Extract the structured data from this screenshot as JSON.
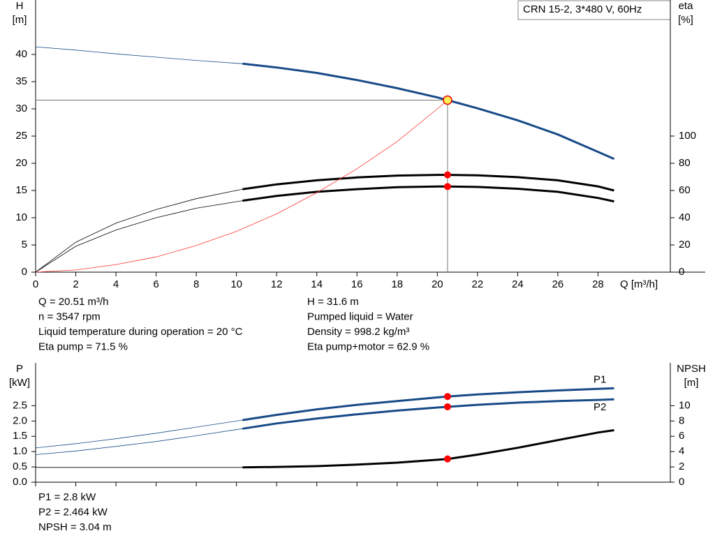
{
  "chart_data": [
    {
      "type": "line",
      "title": "CRN 15-2, 3*480 V, 60Hz",
      "ylabel": "H",
      "yunit": "[m]",
      "y2label": "eta",
      "y2unit": "[%]",
      "xlabel": "Q [m³/h]",
      "xlim": [
        0,
        31.6
      ],
      "xticks": [
        0,
        2,
        4,
        6,
        8,
        10,
        12,
        14,
        16,
        18,
        20,
        22,
        24,
        26,
        28
      ],
      "ylim": [
        0,
        50
      ],
      "yticks": [
        0,
        5,
        10,
        15,
        20,
        25,
        30,
        35,
        40
      ],
      "y2lim": [
        0,
        200
      ],
      "y2ticks": [
        0,
        20,
        40,
        60,
        80,
        100
      ],
      "show_xtick_labels": true,
      "operating_point_x": 20.51,
      "series": [
        {
          "color": "#174a87",
          "thick_from": 10.3,
          "marker": true,
          "marker_color": "#ffee55",
          "guides": true,
          "x": [
            0,
            2,
            4,
            6,
            8,
            10.3,
            12,
            14,
            16,
            18,
            20,
            20.51,
            22,
            24,
            26,
            28,
            28.8
          ],
          "values": [
            41.4,
            40.8,
            40.1,
            39.5,
            38.9,
            38.3,
            37.6,
            36.6,
            35.3,
            33.8,
            32.1,
            31.6,
            30.1,
            27.9,
            25.3,
            22.1,
            20.8
          ]
        },
        {
          "color": "#000000",
          "axis": "y2",
          "thick_from": 10.3,
          "marker": true,
          "marker_color": "#ff0000",
          "x": [
            0,
            2,
            4,
            6,
            8,
            10.3,
            12,
            14,
            16,
            18,
            20,
            20.51,
            22,
            24,
            26,
            28,
            28.8
          ],
          "values": [
            0,
            22,
            36,
            46,
            54,
            61,
            64.5,
            67.5,
            69.6,
            71,
            71.5,
            71.5,
            71.2,
            69.8,
            67.5,
            63,
            60
          ]
        },
        {
          "color": "#000000",
          "axis": "y2",
          "thick_from": 10.3,
          "marker": true,
          "marker_color": "#ff0000",
          "x": [
            0,
            2,
            4,
            6,
            8,
            10.3,
            12,
            14,
            16,
            18,
            20,
            20.51,
            22,
            24,
            26,
            28,
            28.8
          ],
          "values": [
            0,
            19,
            31,
            40,
            47,
            52.5,
            56,
            59,
            61,
            62.4,
            62.9,
            62.9,
            62.6,
            61.3,
            59,
            54.5,
            52
          ]
        },
        {
          "color": "#ff3333",
          "x": [
            0,
            2,
            4,
            6,
            8,
            10,
            12,
            14,
            16,
            18,
            20,
            20.51
          ],
          "values": [
            0,
            0.4,
            1.4,
            2.8,
            4.9,
            7.5,
            10.7,
            14.6,
            19.0,
            24.0,
            30.0,
            31.6
          ]
        }
      ],
      "annotations": [
        "Q = 20.51 m³/h",
        "n = 3547 rpm",
        "Liquid temperature during operation = 20 °C",
        "Eta pump = 71.5 %",
        "H = 31.6 m",
        "Pumped liquid = Water",
        "Density = 998.2 kg/m³",
        "Eta pump+motor = 62.9 %"
      ]
    },
    {
      "type": "line",
      "ylabel": "P",
      "yunit": "[kW]",
      "y2label": "NPSH",
      "y2unit": "[m]",
      "xlim": [
        0,
        31.6
      ],
      "xticks": [
        0,
        2,
        4,
        6,
        8,
        10,
        12,
        14,
        16,
        18,
        20,
        22,
        24,
        26,
        28
      ],
      "ylim": [
        0,
        3.9
      ],
      "yticks": [
        {
          "value": 0,
          "label": "0.0"
        },
        0.5,
        {
          "value": 1,
          "label": "1.0"
        },
        1.5,
        {
          "value": 2,
          "label": "2.0"
        },
        2.5
      ],
      "y2lim": [
        0,
        15.6
      ],
      "y2ticks": [
        0,
        2,
        4,
        6,
        8,
        10
      ],
      "show_xtick_labels": false,
      "operating_point_x": 20.51,
      "series": [
        {
          "name": "P1",
          "color": "#174a87",
          "thick_from": 10.3,
          "marker": true,
          "marker_color": "#ff0000",
          "x": [
            0,
            2,
            4,
            6,
            8,
            10.3,
            12,
            14,
            16,
            18,
            20,
            20.51,
            22,
            24,
            26,
            28,
            28.8
          ],
          "values": [
            1.12,
            1.26,
            1.42,
            1.6,
            1.8,
            2.03,
            2.2,
            2.38,
            2.53,
            2.65,
            2.77,
            2.8,
            2.87,
            2.94,
            3.0,
            3.05,
            3.07
          ]
        },
        {
          "name": "P2",
          "color": "#174a87",
          "thick_from": 10.3,
          "marker": true,
          "marker_color": "#ff0000",
          "x": [
            0,
            2,
            4,
            6,
            8,
            10.3,
            12,
            14,
            16,
            18,
            20,
            20.51,
            22,
            24,
            26,
            28,
            28.8
          ],
          "values": [
            0.9,
            1.02,
            1.17,
            1.33,
            1.52,
            1.75,
            1.92,
            2.08,
            2.22,
            2.34,
            2.44,
            2.464,
            2.53,
            2.6,
            2.65,
            2.69,
            2.71
          ]
        },
        {
          "color": "#000000",
          "axis": "y2",
          "thick_from": 10.3,
          "marker": true,
          "marker_color": "#ff0000",
          "x": [
            0,
            10.3,
            12,
            14,
            16,
            18,
            20.51,
            22,
            24,
            26,
            28,
            28.8
          ],
          "values": [
            1.93,
            1.93,
            2.0,
            2.1,
            2.3,
            2.55,
            3.04,
            3.6,
            4.5,
            5.5,
            6.5,
            6.8
          ]
        }
      ],
      "annotations": [
        "P1 = 2.8 kW",
        "P2 = 2.464 kW",
        "NPSH = 3.04 m"
      ]
    }
  ]
}
